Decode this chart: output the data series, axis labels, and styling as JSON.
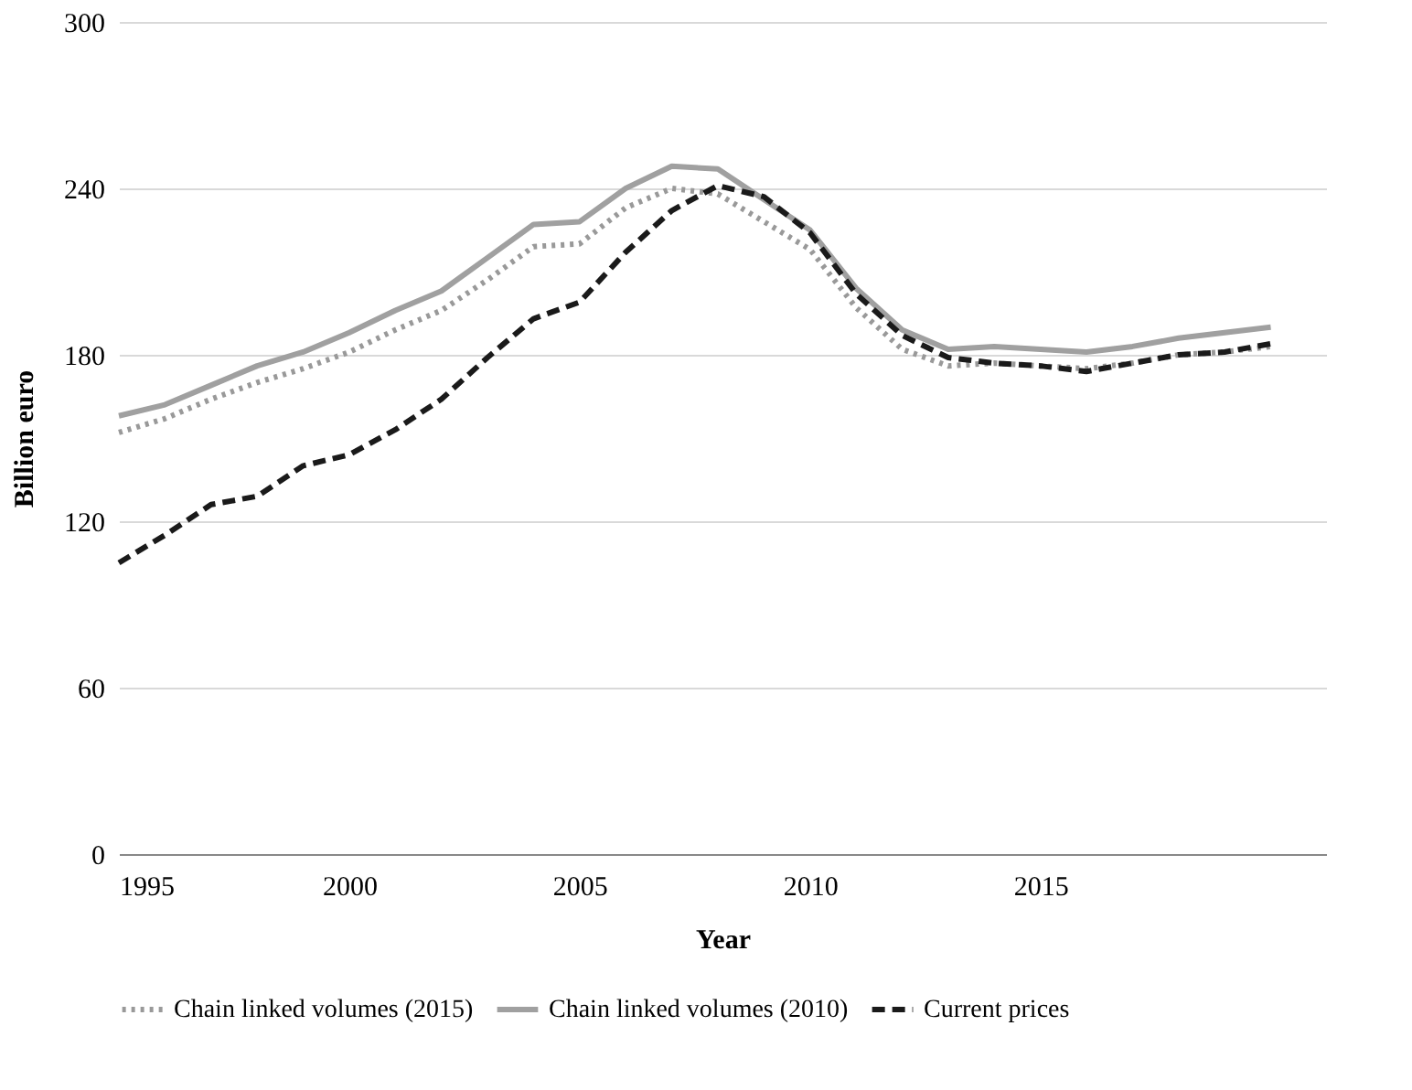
{
  "chart_data": {
    "type": "line",
    "xlabel": "Year",
    "ylabel": "Billion euro",
    "x": [
      1995,
      1996,
      1997,
      1998,
      1999,
      2000,
      2001,
      2002,
      2003,
      2004,
      2005,
      2006,
      2007,
      2008,
      2009,
      2010,
      2011,
      2012,
      2013,
      2014,
      2015,
      2016,
      2017,
      2018,
      2019,
      2020
    ],
    "series": [
      {
        "name": "Chain linked volumes (2015)",
        "color": "#999999",
        "line_style": "dotted",
        "values": [
          152,
          157,
          164,
          170,
          175,
          181,
          189,
          196,
          207,
          219,
          220,
          233,
          240,
          238,
          228,
          218,
          197,
          182,
          176,
          177,
          176,
          175,
          177,
          180,
          181,
          183
        ]
      },
      {
        "name": "Chain linked volumes (2010)",
        "color": "#a0a0a0",
        "line_style": "solid",
        "values": [
          158,
          162,
          169,
          176,
          181,
          188,
          196,
          203,
          215,
          227,
          228,
          240,
          248,
          247,
          236,
          225,
          204,
          189,
          182,
          183,
          182,
          181,
          183,
          186,
          188,
          190
        ]
      },
      {
        "name": "Current prices",
        "color": "#1a1a1a",
        "line_style": "dashed",
        "values": [
          105,
          115,
          126,
          129,
          140,
          144,
          153,
          164,
          179,
          193,
          199,
          217,
          232,
          241,
          237,
          224,
          202,
          187,
          179,
          177,
          176,
          174,
          177,
          180,
          181,
          184
        ]
      }
    ],
    "xlim": [
      1995,
      2021.2
    ],
    "xticks": [
      1995,
      2000,
      2005,
      2010,
      2015
    ],
    "ylim": [
      0,
      300
    ],
    "yticks": [
      0,
      60,
      120,
      180,
      240,
      300
    ],
    "grid": "y",
    "legend": "bottom"
  }
}
